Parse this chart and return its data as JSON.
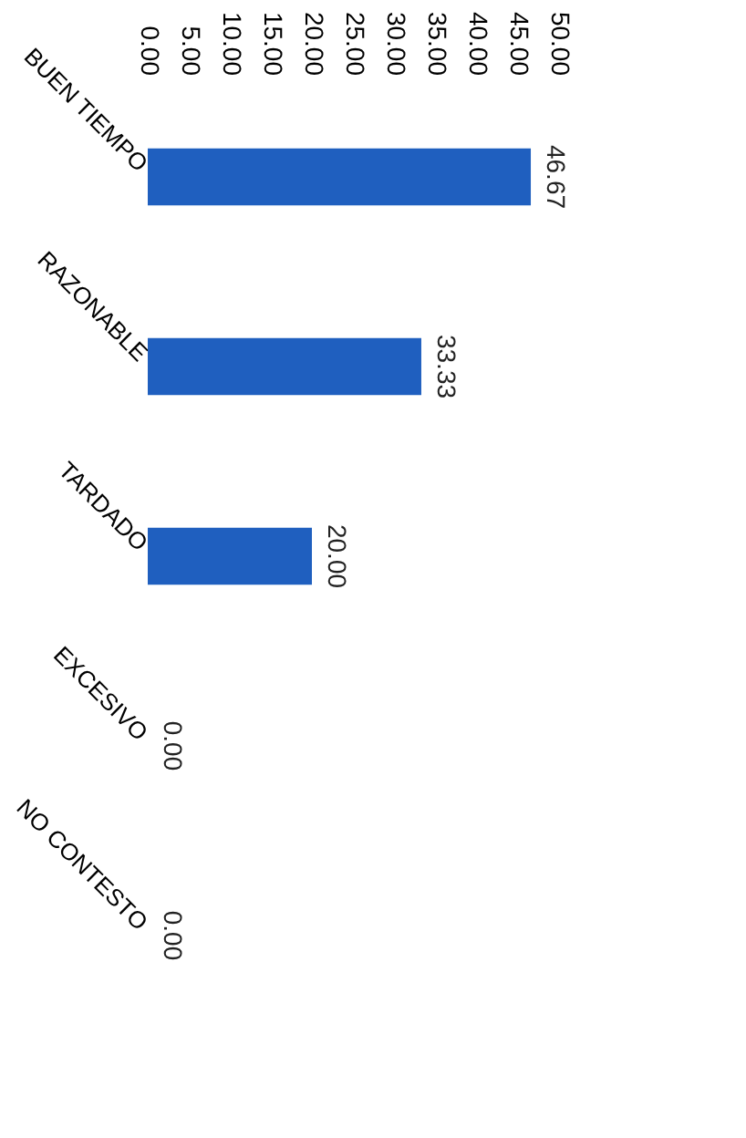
{
  "chart_data": {
    "type": "bar",
    "orientation": "horizontal",
    "categories": [
      "BUEN TIEMPO",
      "RAZONABLE",
      "TARDADO",
      "EXCESIVO",
      "NO CONTESTO"
    ],
    "values": [
      46.67,
      33.33,
      20.0,
      0.0,
      0.0
    ],
    "value_labels": [
      "46.67",
      "33.33",
      "20.00",
      "0.00",
      "0.00"
    ],
    "color": "#1f5fbf",
    "xlim": [
      0,
      50
    ],
    "xticks": [
      {
        "value": 0,
        "label": "0.00"
      },
      {
        "value": 5,
        "label": "5.00"
      },
      {
        "value": 10,
        "label": "10.00"
      },
      {
        "value": 15,
        "label": "15.00"
      },
      {
        "value": 20,
        "label": "20.00"
      },
      {
        "value": 25,
        "label": "25.00"
      },
      {
        "value": 30,
        "label": "30.00"
      },
      {
        "value": 35,
        "label": "35.00"
      },
      {
        "value": 40,
        "label": "40.00"
      },
      {
        "value": 45,
        "label": "45.00"
      },
      {
        "value": 50,
        "label": "50.00"
      }
    ],
    "grid": false
  }
}
